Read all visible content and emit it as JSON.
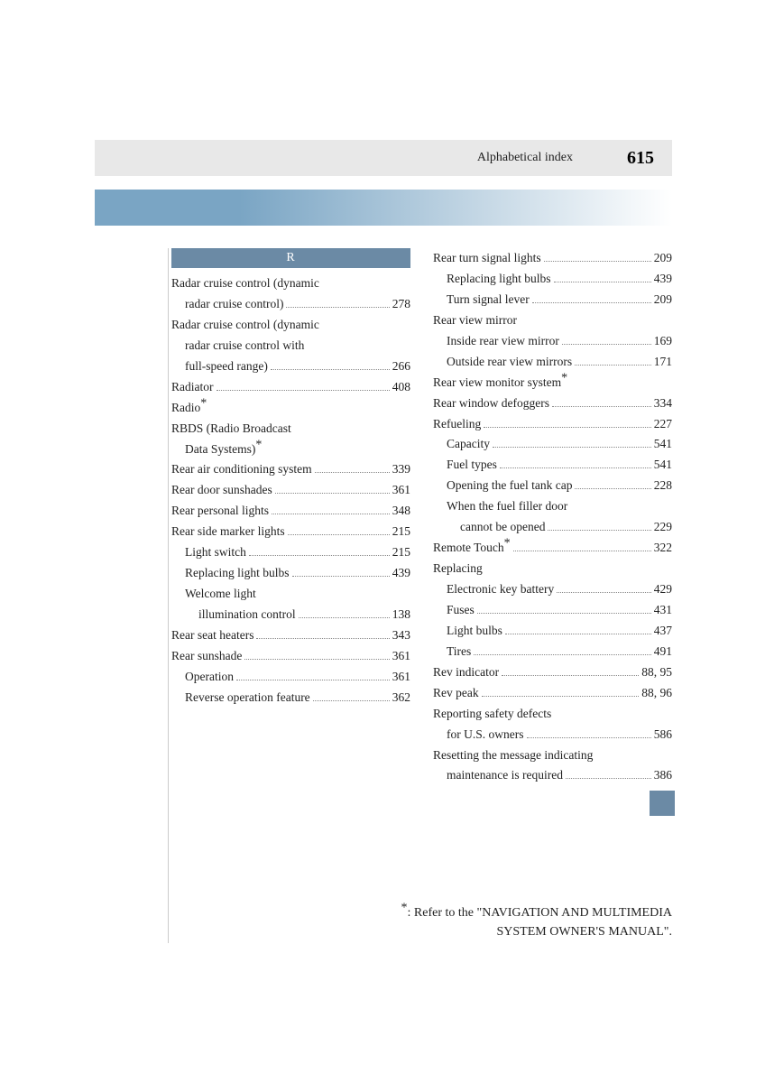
{
  "header": {
    "title": "Alphabetical index",
    "page": "615"
  },
  "section_letter": "R",
  "left_col": [
    {
      "label": "Radar cruise control (dynamic",
      "page": "",
      "cls": "no-page"
    },
    {
      "label": "radar cruise control)",
      "page": "278",
      "cls": "sub"
    },
    {
      "label": "Radar cruise control (dynamic",
      "page": "",
      "cls": "no-page"
    },
    {
      "label": "radar cruise control with",
      "page": "",
      "cls": "sub no-page"
    },
    {
      "label": "full-speed range)",
      "page": "266",
      "cls": "sub"
    },
    {
      "label": "Radiator",
      "page": "408"
    },
    {
      "label": "Radio",
      "page": "",
      "cls": "no-page",
      "star": true
    },
    {
      "label": "RBDS (Radio Broadcast",
      "page": "",
      "cls": "no-page"
    },
    {
      "label": "Data Systems)",
      "page": "",
      "cls": "sub no-page",
      "star": true
    },
    {
      "label": "Rear air conditioning system",
      "page": "339"
    },
    {
      "label": "Rear door sunshades",
      "page": "361"
    },
    {
      "label": "Rear personal lights",
      "page": "348"
    },
    {
      "label": "Rear side marker lights",
      "page": "215"
    },
    {
      "label": "Light switch",
      "page": "215",
      "cls": "sub"
    },
    {
      "label": "Replacing light bulbs",
      "page": "439",
      "cls": "sub"
    },
    {
      "label": "Welcome light",
      "page": "",
      "cls": "sub no-page"
    },
    {
      "label": "illumination control",
      "page": "138",
      "cls": "sub2"
    },
    {
      "label": "Rear seat heaters",
      "page": "343"
    },
    {
      "label": "Rear sunshade",
      "page": "361"
    },
    {
      "label": "Operation",
      "page": "361",
      "cls": "sub"
    },
    {
      "label": "Reverse operation feature",
      "page": "362",
      "cls": "sub"
    }
  ],
  "right_col": [
    {
      "label": "Rear turn signal lights",
      "page": "209"
    },
    {
      "label": "Replacing light bulbs",
      "page": "439",
      "cls": "sub"
    },
    {
      "label": "Turn signal lever",
      "page": "209",
      "cls": "sub"
    },
    {
      "label": "Rear view mirror",
      "page": "",
      "cls": "no-page"
    },
    {
      "label": "Inside rear view mirror",
      "page": "169",
      "cls": "sub"
    },
    {
      "label": "Outside rear view mirrors",
      "page": "171",
      "cls": "sub"
    },
    {
      "label": "Rear view monitor system",
      "page": "",
      "cls": "no-page",
      "star": true
    },
    {
      "label": "Rear window defoggers",
      "page": "334"
    },
    {
      "label": "Refueling",
      "page": "227"
    },
    {
      "label": "Capacity",
      "page": "541",
      "cls": "sub"
    },
    {
      "label": "Fuel types",
      "page": "541",
      "cls": "sub"
    },
    {
      "label": "Opening the fuel tank cap",
      "page": "228",
      "cls": "sub"
    },
    {
      "label": "When the fuel filler door",
      "page": "",
      "cls": "sub no-page"
    },
    {
      "label": "cannot be opened",
      "page": "229",
      "cls": "sub2"
    },
    {
      "label": "Remote Touch",
      "page": "322",
      "star": true
    },
    {
      "label": "Replacing",
      "page": "",
      "cls": "no-page"
    },
    {
      "label": "Electronic key battery",
      "page": "429",
      "cls": "sub"
    },
    {
      "label": "Fuses",
      "page": "431",
      "cls": "sub"
    },
    {
      "label": "Light bulbs",
      "page": "437",
      "cls": "sub"
    },
    {
      "label": "Tires",
      "page": "491",
      "cls": "sub"
    },
    {
      "label": "Rev indicator",
      "page": "88, 95"
    },
    {
      "label": "Rev peak",
      "page": "88, 96"
    },
    {
      "label": "Reporting safety defects",
      "page": "",
      "cls": "no-page"
    },
    {
      "label": "for U.S. owners",
      "page": "586",
      "cls": "sub"
    },
    {
      "label": "Resetting the message indicating",
      "page": "",
      "cls": "no-page"
    },
    {
      "label": "maintenance is required",
      "page": "386",
      "cls": "sub"
    }
  ],
  "footnote_l1": ": Refer to the \"NAVIGATION AND MULTIMEDIA",
  "footnote_l2": "SYSTEM OWNER'S MANUAL\"."
}
